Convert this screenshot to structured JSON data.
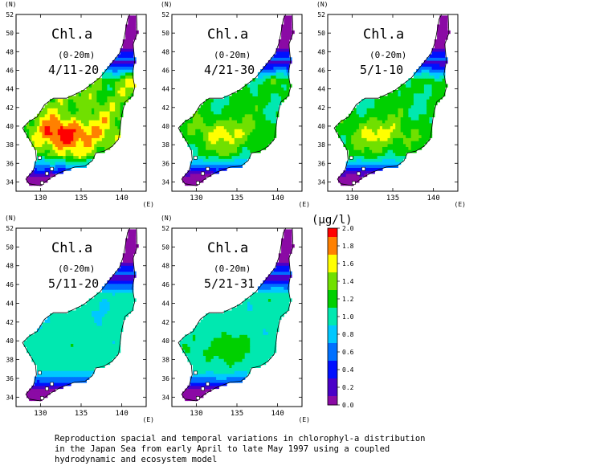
{
  "chart_data": {
    "type": "heatmap",
    "variable": "Chl.a",
    "depth": "(0-20m)",
    "lat_unit": "(N)",
    "lon_unit": "(E)",
    "lat_range": [
      33,
      52
    ],
    "lon_range": [
      127,
      143
    ],
    "lat_ticks": [
      34,
      36,
      38,
      40,
      42,
      44,
      46,
      48,
      50,
      52
    ],
    "lon_ticks": [
      130,
      135,
      140
    ],
    "panels": [
      {
        "period": "4/11-20",
        "chl_min": 0.0,
        "chl_mean": 1.2,
        "chl_max": 2.0
      },
      {
        "period": "4/21-30",
        "chl_min": 0.0,
        "chl_mean": 1.1,
        "chl_max": 1.6
      },
      {
        "period": "5/1-10",
        "chl_min": 0.0,
        "chl_mean": 1.1,
        "chl_max": 1.6
      },
      {
        "period": "5/11-20",
        "chl_min": 0.0,
        "chl_mean": 1.0,
        "chl_max": 1.2
      },
      {
        "period": "5/21-31",
        "chl_min": 0.0,
        "chl_mean": 1.0,
        "chl_max": 1.3
      }
    ],
    "colorbar": {
      "label": "(μg/l)",
      "min": 0.0,
      "max": 2.0,
      "ticks": [
        "2.0",
        "1.8",
        "1.6",
        "1.4",
        "1.2",
        "1.0",
        "0.8",
        "0.6",
        "0.4",
        "0.2",
        "0.0"
      ],
      "colors": [
        "#8b0aa5",
        "#4a00c8",
        "#0010ff",
        "#0070ff",
        "#00c8ff",
        "#00e8b0",
        "#00d000",
        "#70e000",
        "#ffff00",
        "#ff8000",
        "#ff0000"
      ]
    }
  },
  "caption": [
    "Reproduction spacial and temporal variations in chlorophyl-a distribution",
    "in the Japan Sea from early April to late May 1997 using a coupled",
    "hydrodynamic and ecosystem model"
  ]
}
